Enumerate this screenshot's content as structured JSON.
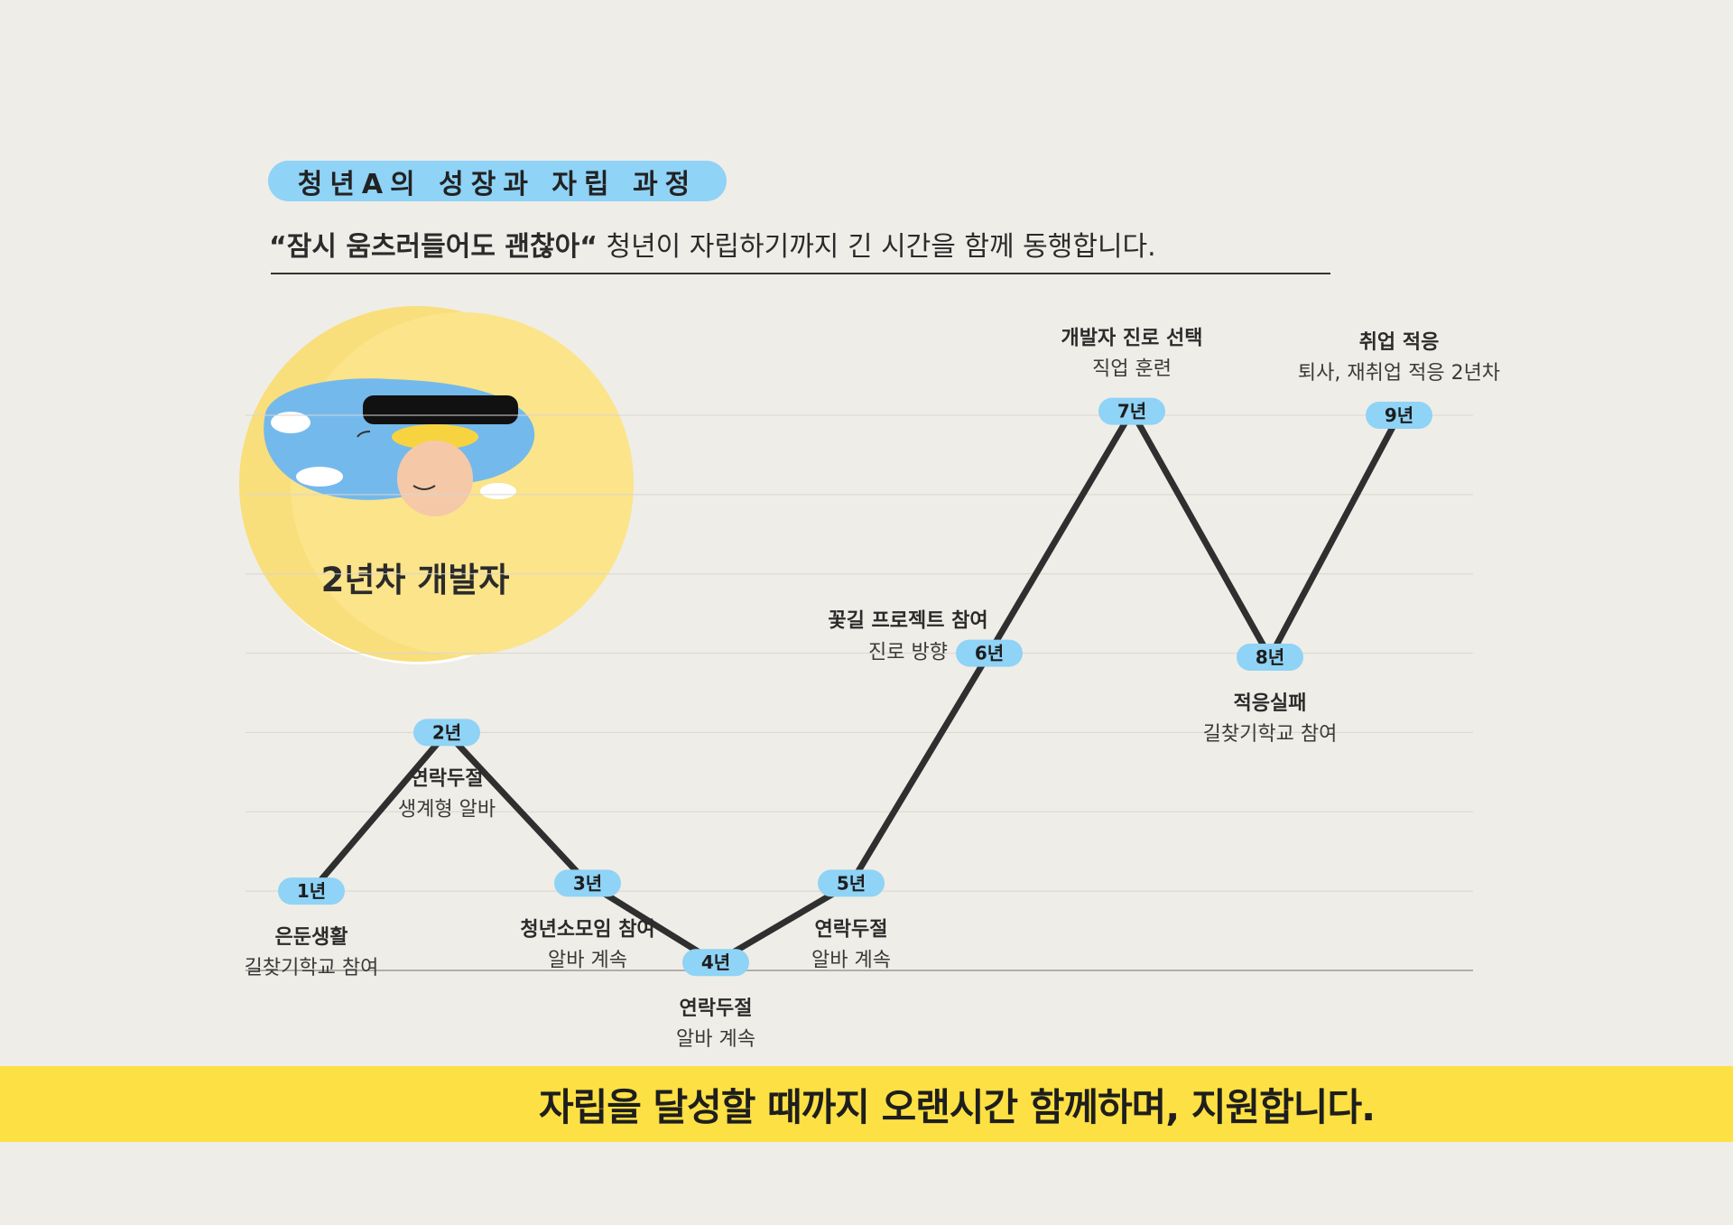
{
  "header": {
    "title": "청년A의 성장과 자립 과정",
    "subtitle_bold": "“잠시 움츠러들어도 괜찮아“",
    "subtitle_rest": " 청년이 자립하기까지 긴 시간을 함께 동행합니다."
  },
  "badge": {
    "label": "2년차 개발자",
    "colors": {
      "outer": "#ffffff",
      "inner": "#fbe48a",
      "inner_edge": "#f6d96b",
      "water": "#74b9ec"
    }
  },
  "chart_data": {
    "type": "line",
    "title": "",
    "xlabel": "",
    "ylabel": "",
    "line_color": "#2f2f2f",
    "marker_color": "#8fd3f6",
    "points": [
      {
        "label": "1년",
        "value": 1,
        "title": "은둔생활",
        "desc": "길찾기학교 참여",
        "note_pos": "below"
      },
      {
        "label": "2년",
        "value": 3,
        "title": "연락두절",
        "desc": "생계형 알바",
        "note_pos": "below"
      },
      {
        "label": "3년",
        "value": 1.1,
        "title": "청년소모임 참여",
        "desc": "알바 계속",
        "note_pos": "below"
      },
      {
        "label": "4년",
        "value": 0.1,
        "title": "연락두절",
        "desc": "알바 계속",
        "note_pos": "below"
      },
      {
        "label": "5년",
        "value": 1.1,
        "title": "연락두절",
        "desc": "알바 계속",
        "note_pos": "below"
      },
      {
        "label": "6년",
        "value": 4,
        "title": "꽃길 프로젝트 참여",
        "desc": "진로 방향",
        "note_pos": "left"
      },
      {
        "label": "7년",
        "value": 7.05,
        "title": "개발자 진로 선택",
        "desc": "직업 훈련",
        "note_pos": "above"
      },
      {
        "label": "8년",
        "value": 3.95,
        "title": "적응실패",
        "desc": "길찾기학교 참여",
        "note_pos": "below"
      },
      {
        "label": "9년",
        "value": 7,
        "title": "취업 적응",
        "desc": "퇴사, 재취업 적응 2년차",
        "note_pos": "above"
      }
    ],
    "grid": true,
    "ylim": [
      0,
      7
    ]
  },
  "footer": {
    "banner_text": "자립을 달성할 때까지 오랜시간 함께하며, 지원합니다.",
    "banner_color": "#fde043"
  }
}
